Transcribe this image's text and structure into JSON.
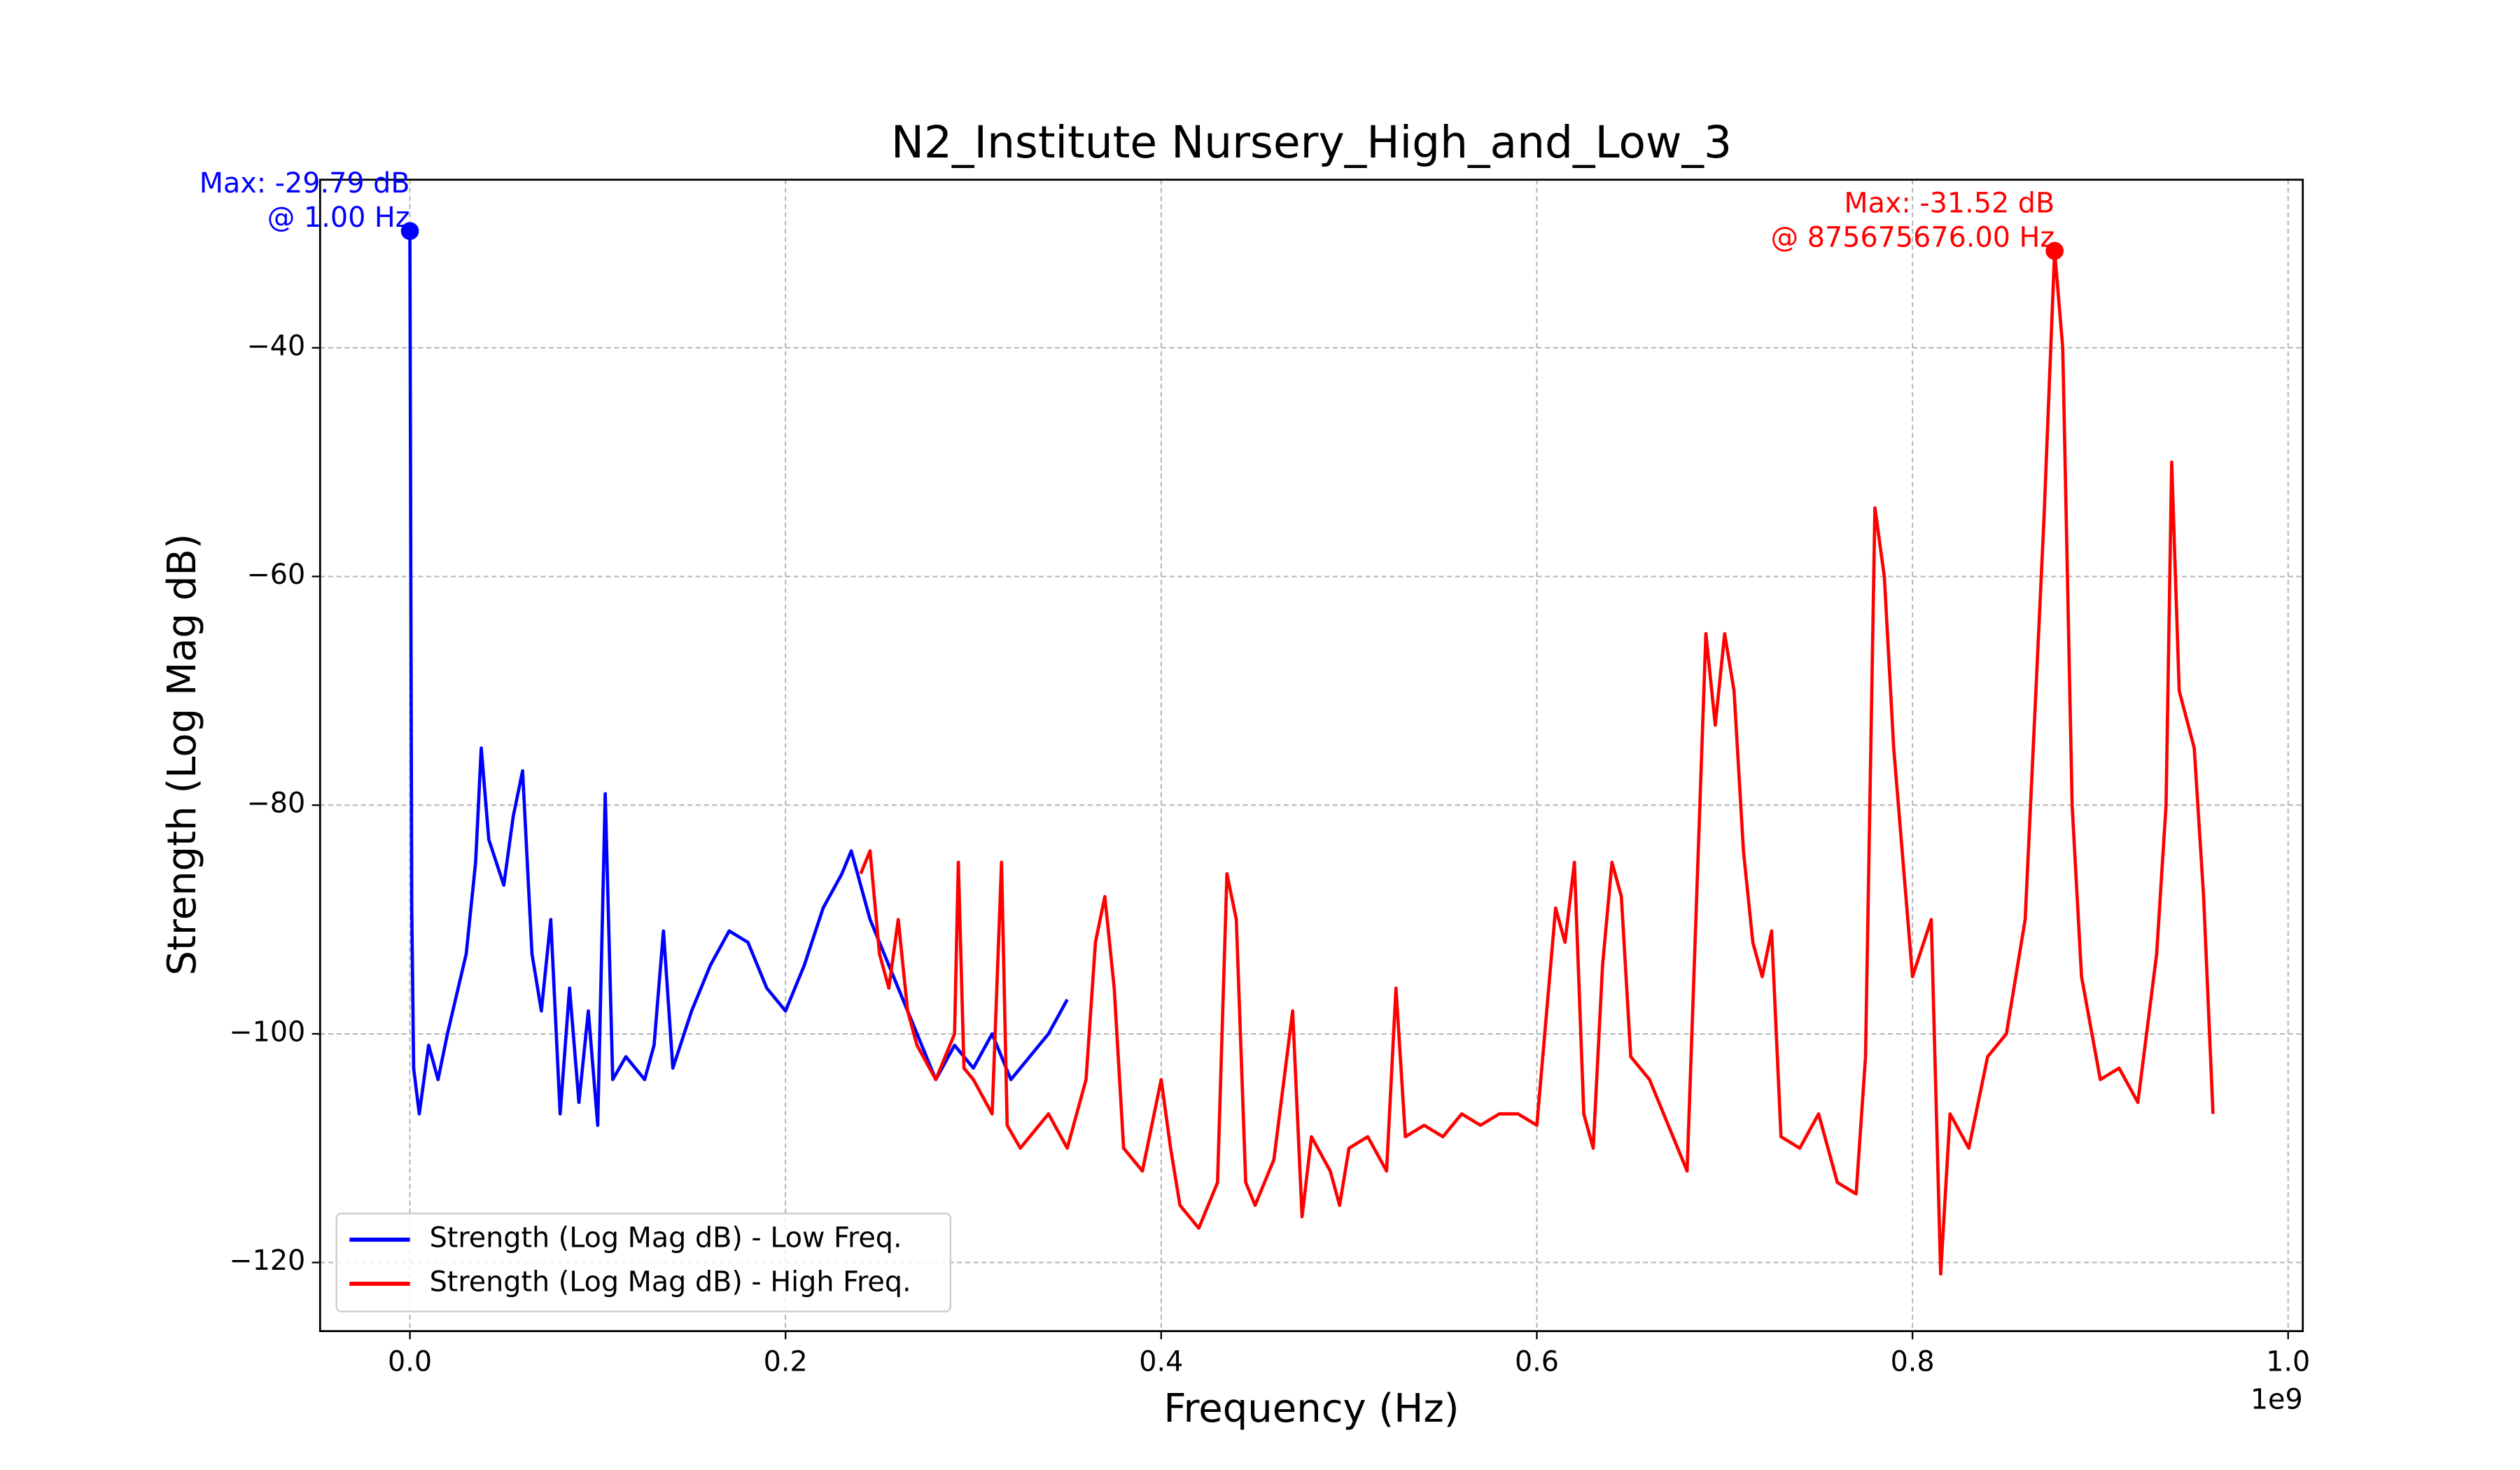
{
  "chart_data": {
    "type": "line",
    "title": "N2_Institute Nursery_High_and_Low_3",
    "x_label": "Frequency (Hz)",
    "y_label": "Strength (Log Mag dB)",
    "x_offset_label": "1e9",
    "xlim": [
      -47800000,
      1007800000
    ],
    "ylim": [
      -126,
      -25.3
    ],
    "xticks": [
      {
        "value": 0,
        "label": "0.0"
      },
      {
        "value": 200000000,
        "label": "0.2"
      },
      {
        "value": 400000000,
        "label": "0.4"
      },
      {
        "value": 600000000,
        "label": "0.6"
      },
      {
        "value": 800000000,
        "label": "0.8"
      },
      {
        "value": 1000000000,
        "label": "1.0"
      }
    ],
    "yticks": [
      {
        "value": -40,
        "label": "−40"
      },
      {
        "value": -60,
        "label": "−60"
      },
      {
        "value": -80,
        "label": "−80"
      },
      {
        "value": -100,
        "label": "−100"
      },
      {
        "value": -120,
        "label": "−120"
      }
    ],
    "grid": true,
    "legend": "lower left",
    "series": [
      {
        "name": "Strength (Log Mag dB) - Low Freq.",
        "color": "#0000ff",
        "x": [
          1,
          1000000,
          2000000,
          5000000,
          10000000,
          15000000,
          20000000,
          30000000,
          35000000,
          38000000,
          42000000,
          50000000,
          55000000,
          60000000,
          65000000,
          70000000,
          75000000,
          80000000,
          85000000,
          90000000,
          95000000,
          100000000,
          104000000,
          108000000,
          115000000,
          125000000,
          130000000,
          135000000,
          140000000,
          150000000,
          160000000,
          170000000,
          180000000,
          190000000,
          200000000,
          210000000,
          220000000,
          230000000,
          235000000,
          245000000,
          260000000,
          270000000,
          280000000,
          290000000,
          300000000,
          310000000,
          320000000,
          330000000,
          340000000,
          350000000
        ],
        "values": [
          -29.79,
          -89,
          -103,
          -107,
          -101,
          -104,
          -100,
          -93,
          -85,
          -75,
          -83,
          -87,
          -81,
          -77,
          -93,
          -98,
          -90,
          -107,
          -96,
          -106,
          -98,
          -108,
          -79,
          -104,
          -102,
          -104,
          -101,
          -91,
          -103,
          -98,
          -94,
          -91,
          -92,
          -96,
          -98,
          -94,
          -89,
          -86,
          -84,
          -90,
          -96,
          -100,
          -104,
          -101,
          -103,
          -100,
          -104,
          -102,
          -100,
          -97
        ]
      },
      {
        "name": "Strength (Log Mag dB) - High Freq.",
        "color": "#ff0000",
        "x": [
          240000000,
          245000000,
          250000000,
          255000000,
          260000000,
          265000000,
          270000000,
          280000000,
          290000000,
          292000000,
          295000000,
          300000000,
          310000000,
          315000000,
          318000000,
          325000000,
          340000000,
          350000000,
          360000000,
          365000000,
          370000000,
          375000000,
          380000000,
          390000000,
          400000000,
          405000000,
          410000000,
          420000000,
          430000000,
          435000000,
          440000000,
          445000000,
          450000000,
          460000000,
          470000000,
          475000000,
          480000000,
          490000000,
          495000000,
          500000000,
          510000000,
          520000000,
          525000000,
          530000000,
          540000000,
          550000000,
          560000000,
          570000000,
          580000000,
          590000000,
          600000000,
          610000000,
          615000000,
          620000000,
          625000000,
          630000000,
          635000000,
          640000000,
          645000000,
          650000000,
          660000000,
          670000000,
          680000000,
          690000000,
          695000000,
          700000000,
          705000000,
          710000000,
          715000000,
          720000000,
          725000000,
          730000000,
          740000000,
          750000000,
          760000000,
          770000000,
          775000000,
          780000000,
          785000000,
          790000000,
          800000000,
          810000000,
          815000000,
          820000000,
          830000000,
          840000000,
          850000000,
          860000000,
          870000000,
          875675676,
          880000000,
          885000000,
          890000000,
          900000000,
          910000000,
          920000000,
          930000000,
          935000000,
          938000000,
          942000000,
          950000000,
          955000000,
          960000000
        ],
        "values": [
          -86,
          -84,
          -93,
          -96,
          -90,
          -98,
          -101,
          -104,
          -100,
          -85,
          -103,
          -104,
          -107,
          -85,
          -108,
          -110,
          -107,
          -110,
          -104,
          -92,
          -88,
          -96,
          -110,
          -112,
          -104,
          -110,
          -115,
          -117,
          -113,
          -86,
          -90,
          -113,
          -115,
          -111,
          -98,
          -116,
          -109,
          -112,
          -115,
          -110,
          -109,
          -112,
          -96,
          -109,
          -108,
          -109,
          -107,
          -108,
          -107,
          -107,
          -108,
          -89,
          -92,
          -85,
          -107,
          -110,
          -94,
          -85,
          -88,
          -102,
          -104,
          -108,
          -112,
          -65,
          -73,
          -65,
          -70,
          -84,
          -92,
          -95,
          -91,
          -109,
          -110,
          -107,
          -113,
          -114,
          -102,
          -54,
          -60,
          -75,
          -95,
          -90,
          -121,
          -107,
          -110,
          -102,
          -100,
          -90,
          -55,
          -31.52,
          -40,
          -80,
          -95,
          -104,
          -103,
          -106,
          -93,
          -80,
          -50,
          -70,
          -75,
          -88,
          -107
        ]
      }
    ],
    "annotations": [
      {
        "lines": [
          "Max: -29.79 dB",
          "@ 1.00 Hz"
        ],
        "x": 1,
        "y": -29.79,
        "color": "#0000ff"
      },
      {
        "lines": [
          "Max: -31.52 dB",
          "@ 875675676.00 Hz"
        ],
        "x": 875675676,
        "y": -31.52,
        "color": "#ff0000"
      }
    ]
  }
}
